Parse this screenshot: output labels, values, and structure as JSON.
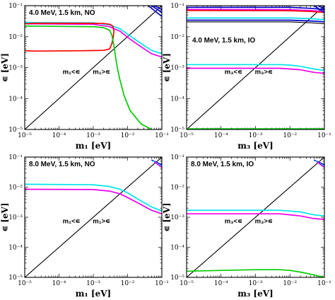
{
  "chart_data": [
    {
      "type": "line",
      "title": "4.0 MeV, 1.5 km, NO",
      "xlabel": "m₁ [eV]",
      "ylabel": "∊ [eV]",
      "xscale": "log",
      "yscale": "log",
      "xlim": [
        1e-05,
        0.1
      ],
      "ylim": [
        1e-05,
        0.1
      ],
      "xticks": [
        "10⁻⁵",
        "10⁻⁴",
        "10⁻³",
        "10⁻²",
        "10⁻¹"
      ],
      "yticks": [
        "10⁻⁵",
        "10⁻⁴",
        "10⁻³",
        "10⁻²",
        "10⁻¹"
      ],
      "annotations": [
        "m₁<∊",
        "m₁>∊"
      ],
      "series": [
        {
          "color": "#000000",
          "x": [
            1e-05,
            0.1
          ],
          "y": [
            1e-05,
            0.1
          ]
        },
        {
          "color": "#00e5ee",
          "x": [
            1e-05,
            0.001,
            0.003,
            0.006,
            0.01,
            0.02,
            0.05,
            0.1
          ],
          "y": [
            0.0285,
            0.028,
            0.024,
            0.018,
            0.012,
            0.007,
            0.0036,
            0.0028
          ]
        },
        {
          "color": "#ee00ee",
          "x": [
            1e-05,
            0.001,
            0.003,
            0.006,
            0.01,
            0.02,
            0.05,
            0.1
          ],
          "y": [
            0.026,
            0.025,
            0.021,
            0.015,
            0.0095,
            0.0055,
            0.0028,
            0.0022
          ]
        },
        {
          "color": "#ff0000",
          "x": [
            1e-05,
            2e-05,
            0.0005,
            0.002,
            0.003,
            0.0035,
            0.0038,
            0.004,
            0.0038,
            0.0035,
            0.003,
            0.002,
            0.0005,
            2e-05,
            1e-05
          ],
          "y": [
            0.0035,
            0.0034,
            0.0035,
            0.0036,
            0.004,
            0.006,
            0.009,
            0.015,
            0.02,
            0.023,
            0.025,
            0.0265,
            0.027,
            0.027,
            0.026
          ]
        },
        {
          "color": "#00cc00",
          "x": [
            1e-05,
            0.001,
            0.002,
            0.003,
            0.0035,
            0.004,
            0.005,
            0.006,
            0.008,
            0.012,
            0.025,
            0.05
          ],
          "y": [
            0.022,
            0.021,
            0.0195,
            0.016,
            0.011,
            0.005,
            0.001,
            0.0004,
            0.00012,
            4e-05,
            1.5e-05,
            1e-05
          ]
        },
        {
          "color": "#0000cc",
          "x": [
            0.04,
            0.1
          ],
          "y": [
            0.1,
            0.045
          ]
        },
        {
          "color": "#0000cc",
          "x": [
            0.05,
            0.1
          ],
          "y": [
            0.1,
            0.06
          ]
        },
        {
          "color": "#0000cc",
          "x": [
            0.06,
            0.1
          ],
          "y": [
            0.1,
            0.075
          ]
        }
      ]
    },
    {
      "type": "line",
      "title": "4.0 MeV, 1.5 km, IO",
      "xlabel": "m₃ [eV]",
      "ylabel": "∊ [eV]",
      "xscale": "log",
      "yscale": "log",
      "xlim": [
        1e-05,
        0.1
      ],
      "ylim": [
        1e-05,
        0.1
      ],
      "xticks": [
        "10⁻⁵",
        "10⁻⁴",
        "10⁻³",
        "10⁻²",
        "10⁻¹"
      ],
      "yticks": [
        "10⁻⁵",
        "10⁻⁴",
        "10⁻³",
        "10⁻²",
        "10⁻¹"
      ],
      "annotations": [
        "m₃<∊",
        "m₃>∊"
      ],
      "series": [
        {
          "color": "#000000",
          "x": [
            1e-05,
            0.1
          ],
          "y": [
            1e-05,
            0.1
          ]
        },
        {
          "color": "#0000cc",
          "x": [
            1e-05,
            0.01,
            0.04,
            0.1
          ],
          "y": [
            0.088,
            0.088,
            0.082,
            0.075
          ]
        },
        {
          "color": "#ee00ee",
          "x": [
            1e-05,
            0.01,
            0.04,
            0.1
          ],
          "y": [
            0.075,
            0.074,
            0.07,
            0.064
          ]
        },
        {
          "color": "#ff0000",
          "x": [
            1e-05,
            0.01,
            0.04,
            0.1
          ],
          "y": [
            0.07,
            0.069,
            0.065,
            0.06
          ]
        },
        {
          "color": "#00e5ee",
          "x": [
            1e-05,
            0.01,
            0.04,
            0.1
          ],
          "y": [
            0.04,
            0.04,
            0.038,
            0.035
          ]
        },
        {
          "color": "#0000cc",
          "x": [
            1e-05,
            0.01,
            0.04,
            0.1
          ],
          "y": [
            0.034,
            0.034,
            0.032,
            0.03
          ]
        },
        {
          "color": "#000000",
          "x": [
            1e-05,
            0.01,
            0.04,
            0.1
          ],
          "y": [
            0.03,
            0.03,
            0.028,
            0.026
          ]
        },
        {
          "color": "#00e5ee",
          "x": [
            1e-05,
            0.005,
            0.01,
            0.02,
            0.05,
            0.1
          ],
          "y": [
            0.00125,
            0.00125,
            0.0012,
            0.0011,
            0.0009,
            0.0008
          ]
        },
        {
          "color": "#ee00ee",
          "x": [
            1e-05,
            0.005,
            0.01,
            0.02,
            0.05,
            0.1
          ],
          "y": [
            0.00095,
            0.00095,
            0.0009,
            0.00085,
            0.0007,
            0.00065
          ]
        },
        {
          "color": "#00cc00",
          "x": [
            1e-05,
            0.1
          ],
          "y": [
            1.05e-05,
            1.05e-05
          ]
        },
        {
          "color": "#0000cc",
          "x": [
            0.05,
            0.1
          ],
          "y": [
            0.1,
            0.06
          ]
        },
        {
          "color": "#0000cc",
          "x": [
            0.065,
            0.1
          ],
          "y": [
            0.1,
            0.08
          ]
        }
      ]
    },
    {
      "type": "line",
      "title": "8.0 MeV, 1.5 km, NO",
      "xlabel": "m₁ [eV]",
      "ylabel": "∊ [eV]",
      "xscale": "log",
      "yscale": "log",
      "xlim": [
        1e-05,
        0.1
      ],
      "ylim": [
        1e-05,
        0.1
      ],
      "xticks": [
        "10⁻⁵",
        "10⁻⁴",
        "10⁻³",
        "10⁻²",
        "10⁻¹"
      ],
      "yticks": [
        "10⁻⁵",
        "10⁻⁴",
        "10⁻³",
        "10⁻²",
        "10⁻¹"
      ],
      "annotations": [
        "m₁<∊",
        "m₁>∊"
      ],
      "series": [
        {
          "color": "#000000",
          "x": [
            1e-05,
            0.1
          ],
          "y": [
            1e-05,
            0.1
          ]
        },
        {
          "color": "#00e5ee",
          "x": [
            1e-05,
            0.001,
            0.003,
            0.006,
            0.01,
            0.02,
            0.05,
            0.1
          ],
          "y": [
            0.0125,
            0.012,
            0.0105,
            0.0085,
            0.0065,
            0.004,
            0.0022,
            0.0016
          ]
        },
        {
          "color": "#ee00ee",
          "x": [
            1e-05,
            0.001,
            0.003,
            0.006,
            0.01,
            0.02,
            0.05,
            0.1
          ],
          "y": [
            0.0085,
            0.0083,
            0.0074,
            0.006,
            0.0045,
            0.003,
            0.0017,
            0.0013
          ]
        },
        {
          "color": "#0000cc",
          "x": [
            0.05,
            0.1
          ],
          "y": [
            0.08,
            0.055
          ]
        },
        {
          "color": "#00e5ee",
          "x": [
            0.055,
            0.1
          ],
          "y": [
            0.075,
            0.05
          ]
        },
        {
          "color": "#ee00ee",
          "x": [
            0.06,
            0.1
          ],
          "y": [
            0.07,
            0.045
          ]
        }
      ]
    },
    {
      "type": "line",
      "title": "8.0 MeV, 1.5 km, IO",
      "xlabel": "m₃ [eV]",
      "ylabel": "∊ [eV]",
      "xscale": "log",
      "yscale": "log",
      "xlim": [
        1e-05,
        0.1
      ],
      "ylim": [
        1e-05,
        0.1
      ],
      "xticks": [
        "10⁻⁵",
        "10⁻⁴",
        "10⁻³",
        "10⁻²",
        "10⁻¹"
      ],
      "yticks": [
        "10⁻⁵",
        "10⁻⁴",
        "10⁻³",
        "10⁻²",
        "10⁻¹"
      ],
      "annotations": [
        "m₃<∊",
        "m₃>∊"
      ],
      "series": [
        {
          "color": "#000000",
          "x": [
            1e-05,
            0.1
          ],
          "y": [
            1e-05,
            0.1
          ]
        },
        {
          "color": "#00e5ee",
          "x": [
            1e-05,
            0.005,
            0.01,
            0.02,
            0.05,
            0.1
          ],
          "y": [
            0.0017,
            0.0017,
            0.0016,
            0.0015,
            0.0012,
            0.0011
          ]
        },
        {
          "color": "#ee00ee",
          "x": [
            1e-05,
            0.005,
            0.01,
            0.02,
            0.05,
            0.1
          ],
          "y": [
            0.0013,
            0.0013,
            0.0012,
            0.0011,
            0.0009,
            0.00085
          ]
        },
        {
          "color": "#00cc00",
          "x": [
            1e-05,
            0.0001,
            0.001,
            0.005,
            0.01,
            0.02,
            0.05,
            0.1
          ],
          "y": [
            1.6e-05,
            1.7e-05,
            1.8e-05,
            1.8e-05,
            1.7e-05,
            1.5e-05,
            1.2e-05,
            1e-05
          ]
        },
        {
          "color": "#0000cc",
          "x": [
            0.05,
            0.1
          ],
          "y": [
            0.08,
            0.055
          ]
        },
        {
          "color": "#00e5ee",
          "x": [
            0.055,
            0.1
          ],
          "y": [
            0.075,
            0.05
          ]
        },
        {
          "color": "#ee00ee",
          "x": [
            0.06,
            0.1
          ],
          "y": [
            0.07,
            0.045
          ]
        }
      ]
    }
  ]
}
